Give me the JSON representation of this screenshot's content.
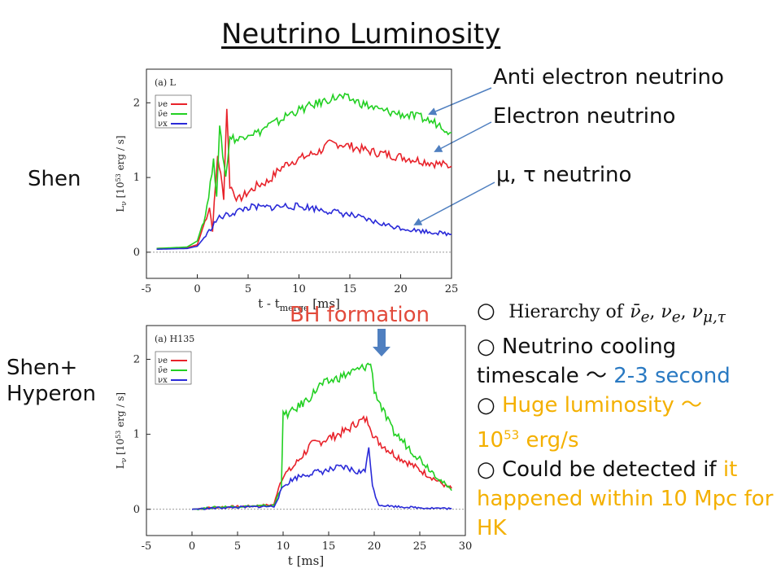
{
  "slide": {
    "title": "Neutrino Luminosity",
    "row_labels": {
      "shen": "Shen",
      "shen_hyperon_1": "Shen+",
      "shen_hyperon_2": "Hyperon"
    },
    "annotations": {
      "anti_electron": "Anti electron neutrino",
      "electron": "Electron neutrino",
      "mu_tau": "μ, τ neutrino",
      "bh_formation": "BH formation"
    },
    "bullets": {
      "b1_prefix": "○",
      "b1_text": "Hierarchy of",
      "b2_prefix": "○ Neutrino cooling timescale ～ ",
      "b2_value": "2-3 second",
      "b3_prefix": "○ ",
      "b3_text": "Huge luminosity ～",
      "b3_num": "10",
      "b3_exp": "53",
      "b3_unit": " erg/s",
      "b4_prefix": "○ Could be detected if ",
      "b4_text": "it happened within 10 Mpc for HK"
    },
    "colors": {
      "accent_blue": "#2979c2",
      "accent_orange": "#f4b000",
      "bh_red": "#e24a3b",
      "arrow": "#4f7fc0"
    }
  },
  "chart_data": [
    {
      "type": "line",
      "panel_label": "(a) L",
      "xlabel": "t - t",
      "xlabel_sub": "merge",
      "xlabel_unit": " [ms]",
      "ylabel": "L",
      "ylabel_sub": "ν",
      "ylabel_unit": " [10",
      "ylabel_exp": "53",
      "ylabel_unit2": " erg / s]",
      "xlim": [
        -5,
        25
      ],
      "ylim": [
        -0.35,
        2.45
      ],
      "xticks": [
        -5,
        0,
        5,
        10,
        15,
        20,
        25
      ],
      "yticks": [
        0,
        1,
        2
      ],
      "legend_position": "top-left",
      "series": [
        {
          "name": "νe",
          "color": "#e8222a",
          "points": [
            [
              -4,
              0.05
            ],
            [
              -1,
              0.06
            ],
            [
              0,
              0.1
            ],
            [
              0.6,
              0.35
            ],
            [
              1.2,
              0.6
            ],
            [
              1.5,
              0.3
            ],
            [
              2,
              1.3
            ],
            [
              2.6,
              0.75
            ],
            [
              2.9,
              1.95
            ],
            [
              3.2,
              0.9
            ],
            [
              4,
              0.7
            ],
            [
              5,
              0.8
            ],
            [
              6,
              0.9
            ],
            [
              7,
              0.95
            ],
            [
              8,
              1.1
            ],
            [
              9,
              1.2
            ],
            [
              10,
              1.25
            ],
            [
              11,
              1.3
            ],
            [
              12,
              1.35
            ],
            [
              13,
              1.45
            ],
            [
              14,
              1.45
            ],
            [
              15,
              1.42
            ],
            [
              17,
              1.35
            ],
            [
              19,
              1.3
            ],
            [
              21,
              1.25
            ],
            [
              23,
              1.2
            ],
            [
              25,
              1.15
            ]
          ]
        },
        {
          "name": "ν̄e",
          "color": "#22d022",
          "points": [
            [
              -4,
              0.05
            ],
            [
              -1,
              0.07
            ],
            [
              0,
              0.15
            ],
            [
              0.8,
              0.5
            ],
            [
              1.6,
              1.2
            ],
            [
              1.9,
              0.8
            ],
            [
              2.2,
              1.65
            ],
            [
              2.8,
              1.0
            ],
            [
              3.2,
              1.55
            ],
            [
              4,
              1.5
            ],
            [
              5,
              1.6
            ],
            [
              6,
              1.6
            ],
            [
              7,
              1.7
            ],
            [
              8,
              1.75
            ],
            [
              9,
              1.85
            ],
            [
              10,
              1.9
            ],
            [
              11,
              1.95
            ],
            [
              12,
              2.0
            ],
            [
              13,
              2.05
            ],
            [
              14,
              2.08
            ],
            [
              15,
              2.05
            ],
            [
              16,
              2.0
            ],
            [
              17,
              1.95
            ],
            [
              18,
              1.9
            ],
            [
              20,
              1.85
            ],
            [
              22,
              1.8
            ],
            [
              23,
              1.75
            ],
            [
              24,
              1.7
            ],
            [
              25,
              1.6
            ]
          ]
        },
        {
          "name": "νx",
          "color": "#2a2ad8",
          "points": [
            [
              -4,
              0.04
            ],
            [
              -1,
              0.05
            ],
            [
              0,
              0.08
            ],
            [
              1,
              0.25
            ],
            [
              2,
              0.45
            ],
            [
              3,
              0.5
            ],
            [
              4,
              0.55
            ],
            [
              5,
              0.6
            ],
            [
              7,
              0.6
            ],
            [
              9,
              0.62
            ],
            [
              11,
              0.6
            ],
            [
              13,
              0.55
            ],
            [
              15,
              0.5
            ],
            [
              17,
              0.42
            ],
            [
              19,
              0.35
            ],
            [
              21,
              0.3
            ],
            [
              23,
              0.27
            ],
            [
              25,
              0.24
            ]
          ]
        }
      ]
    },
    {
      "type": "line",
      "panel_label": "(a) H135",
      "xlabel": "t [ms]",
      "ylabel": "L",
      "ylabel_sub": "ν",
      "ylabel_unit": " [10",
      "ylabel_exp": "53",
      "ylabel_unit2": " erg / s]",
      "xlim": [
        -5,
        30
      ],
      "ylim": [
        -0.35,
        2.45
      ],
      "xticks": [
        -5,
        0,
        5,
        10,
        15,
        20,
        25,
        30
      ],
      "yticks": [
        0,
        1,
        2
      ],
      "legend_position": "top-left",
      "series": [
        {
          "name": "νe",
          "color": "#e8222a",
          "points": [
            [
              0,
              0
            ],
            [
              3,
              0.03
            ],
            [
              6,
              0.04
            ],
            [
              9,
              0.06
            ],
            [
              9.5,
              0.3
            ],
            [
              10,
              0.45
            ],
            [
              11,
              0.55
            ],
            [
              12,
              0.7
            ],
            [
              13,
              0.85
            ],
            [
              14,
              0.9
            ],
            [
              15,
              0.95
            ],
            [
              16,
              1.0
            ],
            [
              17,
              1.05
            ],
            [
              18,
              1.15
            ],
            [
              19,
              1.2
            ],
            [
              19.5,
              1.15
            ],
            [
              20,
              0.95
            ],
            [
              21,
              0.85
            ],
            [
              22,
              0.75
            ],
            [
              24,
              0.6
            ],
            [
              26,
              0.45
            ],
            [
              28,
              0.3
            ],
            [
              28.5,
              0.28
            ]
          ]
        },
        {
          "name": "ν̄e",
          "color": "#22d022",
          "points": [
            [
              0,
              0
            ],
            [
              3,
              0.03
            ],
            [
              6,
              0.04
            ],
            [
              9,
              0.05
            ],
            [
              9.8,
              0.3
            ],
            [
              10,
              1.25
            ],
            [
              11,
              1.3
            ],
            [
              12,
              1.4
            ],
            [
              13,
              1.5
            ],
            [
              14,
              1.65
            ],
            [
              15,
              1.7
            ],
            [
              16,
              1.75
            ],
            [
              17,
              1.8
            ],
            [
              18,
              1.85
            ],
            [
              19,
              1.9
            ],
            [
              19.6,
              1.95
            ],
            [
              20,
              1.6
            ],
            [
              21,
              1.3
            ],
            [
              22,
              1.05
            ],
            [
              24,
              0.8
            ],
            [
              26,
              0.55
            ],
            [
              28,
              0.3
            ],
            [
              28.5,
              0.25
            ]
          ]
        },
        {
          "name": "νx",
          "color": "#2a2ad8",
          "points": [
            [
              0,
              0
            ],
            [
              3,
              0.02
            ],
            [
              6,
              0.03
            ],
            [
              9,
              0.04
            ],
            [
              10,
              0.3
            ],
            [
              11,
              0.4
            ],
            [
              12,
              0.45
            ],
            [
              13,
              0.48
            ],
            [
              14,
              0.5
            ],
            [
              15,
              0.52
            ],
            [
              16,
              0.55
            ],
            [
              17,
              0.55
            ],
            [
              18,
              0.5
            ],
            [
              19,
              0.5
            ],
            [
              19.4,
              0.88
            ],
            [
              19.8,
              0.3
            ],
            [
              20.5,
              0.06
            ],
            [
              22,
              0.04
            ],
            [
              25,
              0.02
            ],
            [
              28.5,
              0.01
            ]
          ]
        }
      ]
    }
  ]
}
